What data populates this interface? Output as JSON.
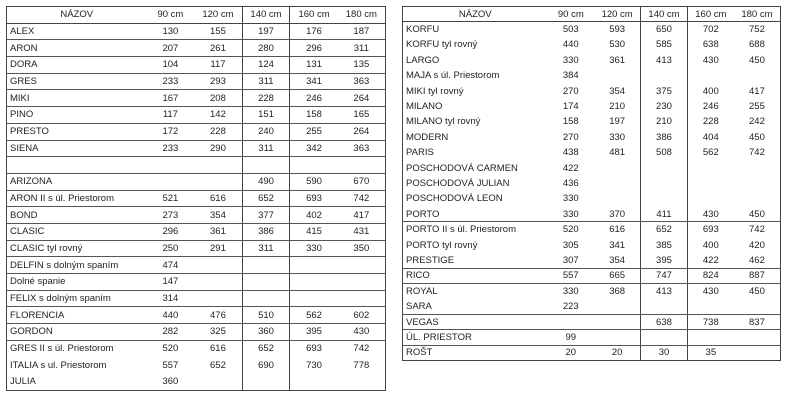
{
  "headers": [
    "NÁZOV",
    "90 cm",
    "120 cm",
    "140 cm",
    "160 cm",
    "180 cm"
  ],
  "left_table": [
    [
      "ALEX",
      "130",
      "155",
      "197",
      "176",
      "187"
    ],
    [
      "ARON",
      "207",
      "261",
      "280",
      "296",
      "311"
    ],
    [
      "DORA",
      "104",
      "117",
      "124",
      "131",
      "135"
    ],
    [
      "GRES",
      "233",
      "293",
      "311",
      "341",
      "363"
    ],
    [
      "MIKI",
      "167",
      "208",
      "228",
      "246",
      "264"
    ],
    [
      "PINO",
      "117",
      "142",
      "151",
      "158",
      "165"
    ],
    [
      "PRESTO",
      "172",
      "228",
      "240",
      "255",
      "264"
    ],
    [
      "SIENA",
      "233",
      "290",
      "311",
      "342",
      "363"
    ],
    [
      "",
      "",
      "",
      "",
      "",
      ""
    ],
    [
      "ARIZONA",
      "",
      "",
      "490",
      "590",
      "670"
    ],
    [
      "ARON II s úl. Priestorom",
      "521",
      "616",
      "652",
      "693",
      "742"
    ],
    [
      "BOND",
      "273",
      "354",
      "377",
      "402",
      "417"
    ],
    [
      "CLASIC",
      "296",
      "361",
      "386",
      "415",
      "431"
    ],
    [
      "CLASIC tyl rovný",
      "250",
      "291",
      "311",
      "330",
      "350"
    ],
    [
      "DELFIN s dolným spaním",
      "474",
      "",
      "",
      "",
      ""
    ],
    [
      "Dolné spanie",
      "147",
      "",
      "",
      "",
      ""
    ],
    [
      "FELIX s dolným spaním",
      "314",
      "",
      "",
      "",
      ""
    ],
    [
      "FLORENCIA",
      "440",
      "476",
      "510",
      "562",
      "602"
    ],
    [
      "GORDON",
      "282",
      "325",
      "360",
      "395",
      "430"
    ],
    [
      "GRES II s úl. Priestorom",
      "520",
      "616",
      "652",
      "693",
      "742"
    ],
    [
      "ITALIA s ul. Priestorom",
      "557",
      "652",
      "690",
      "730",
      "778"
    ],
    [
      "JULIA",
      "360",
      "",
      "",
      "",
      ""
    ]
  ],
  "right_table": [
    [
      "KORFU",
      "503",
      "593",
      "650",
      "702",
      "752"
    ],
    [
      "KORFU tyl rovný",
      "440",
      "530",
      "585",
      "638",
      "688"
    ],
    [
      "LARGO",
      "330",
      "361",
      "413",
      "430",
      "450"
    ],
    [
      "MAJA s úl. Priestorom",
      "384",
      "",
      "",
      "",
      ""
    ],
    [
      "MIKI tyl rovný",
      "270",
      "354",
      "375",
      "400",
      "417"
    ],
    [
      "MILANO",
      "174",
      "210",
      "230",
      "246",
      "255"
    ],
    [
      "MILANO tyl rovný",
      "158",
      "197",
      "210",
      "228",
      "242"
    ],
    [
      "MODERN",
      "270",
      "330",
      "386",
      "404",
      "450"
    ],
    [
      "PARIS",
      "438",
      "481",
      "508",
      "562",
      "742"
    ],
    [
      "POSCHODOVÁ CARMEN",
      "422",
      "",
      "",
      "",
      ""
    ],
    [
      "POSCHODOVÁ JULIAN",
      "436",
      "",
      "",
      "",
      ""
    ],
    [
      "POSCHODOVÁ LEON",
      "330",
      "",
      "",
      "",
      ""
    ],
    [
      "PORTO",
      "330",
      "370",
      "411",
      "430",
      "450"
    ],
    [
      "PORTO II s úl. Priestorom",
      "520",
      "616",
      "652",
      "693",
      "742"
    ],
    [
      "PORTO tyl rovný",
      "305",
      "341",
      "385",
      "400",
      "420"
    ],
    [
      "PRESTIGE",
      "307",
      "354",
      "395",
      "422",
      "462"
    ],
    [
      "RICO",
      "557",
      "665",
      "747",
      "824",
      "887"
    ],
    [
      "ROYAL",
      "330",
      "368",
      "413",
      "430",
      "450"
    ],
    [
      "SARA",
      "223",
      "",
      "",
      "",
      ""
    ],
    [
      "VEGAS",
      "",
      "",
      "638",
      "738",
      "837"
    ],
    [
      "ÚL. PRIESTOR",
      "99",
      "",
      "",
      "",
      ""
    ],
    [
      "ROŠT",
      "20",
      "20",
      "30",
      "35",
      ""
    ]
  ]
}
